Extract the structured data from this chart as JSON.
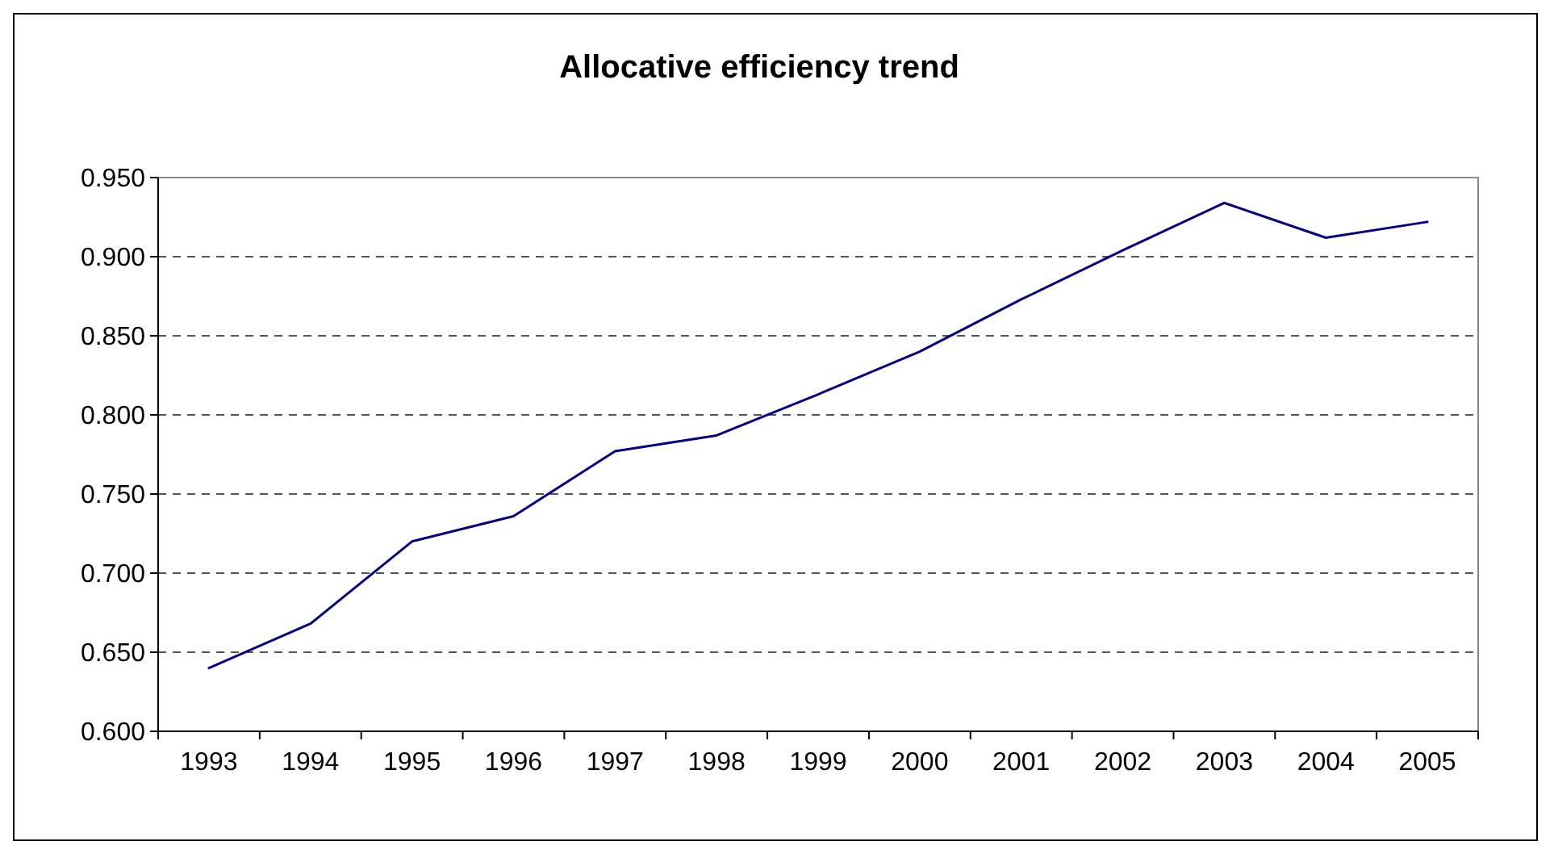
{
  "chart_data": {
    "type": "line",
    "title": "Allocative efficiency trend",
    "categories": [
      "1993",
      "1994",
      "1995",
      "1996",
      "1997",
      "1998",
      "1999",
      "2000",
      "2001",
      "2002",
      "2003",
      "2004",
      "2005"
    ],
    "series": [
      {
        "color": "#000080",
        "values": [
          0.64,
          0.668,
          0.72,
          0.736,
          0.777,
          0.787,
          0.813,
          0.84,
          0.873,
          0.904,
          0.934,
          0.912,
          0.922
        ]
      }
    ],
    "ylim": [
      0.6,
      0.95
    ],
    "yticks": [
      {
        "value": 0.6,
        "label": "0.600"
      },
      {
        "value": 0.65,
        "label": "0.650"
      },
      {
        "value": 0.7,
        "label": "0.700"
      },
      {
        "value": 0.75,
        "label": "0.750"
      },
      {
        "value": 0.8,
        "label": "0.800"
      },
      {
        "value": 0.85,
        "label": "0.850"
      },
      {
        "value": 0.9,
        "label": "0.900"
      },
      {
        "value": 0.95,
        "label": "0.950"
      }
    ],
    "grid": "y",
    "marker": "none",
    "line_style": "solid"
  }
}
